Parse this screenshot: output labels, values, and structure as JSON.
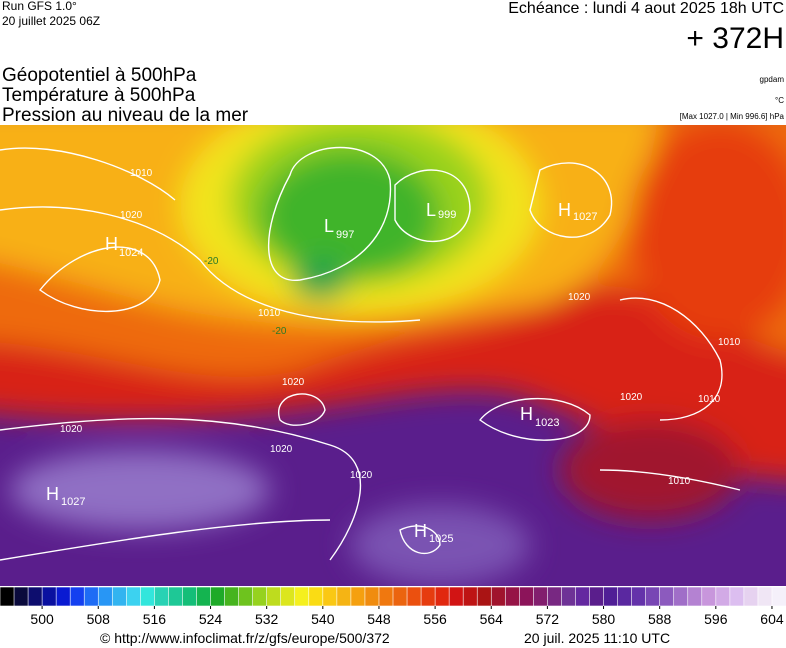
{
  "header": {
    "run": "Run GFS 1.0°",
    "date": "20 juillet 2025 06Z",
    "echeance": "Echéance : lundi 4 aout 2025 18h UTC",
    "lead": "+ 372H",
    "titles": [
      "Géopotentiel à 500hPa",
      "Température à 500hPa",
      "Pression au niveau de la mer"
    ],
    "units": [
      "gpdam",
      "°C"
    ],
    "pressure_range": "[Max 1027.0 | Min 996.6] hPa"
  },
  "map": {
    "centers": [
      {
        "type": "H",
        "value": "1024"
      },
      {
        "type": "L",
        "value": "997"
      },
      {
        "type": "L",
        "value": "999"
      },
      {
        "type": "H",
        "value": "1027"
      },
      {
        "type": "H",
        "value": "1023"
      },
      {
        "type": "H",
        "value": "1027"
      },
      {
        "type": "H",
        "value": "1025"
      }
    ],
    "isobar_labels": [
      "1010",
      "1020",
      "1010",
      "1020",
      "1020",
      "1020",
      "1020",
      "1020",
      "1010",
      "1020",
      "1010",
      "1010"
    ],
    "temperature_labels": [
      "-20",
      "-20"
    ]
  },
  "colorbar": {
    "range": [
      494,
      606
    ],
    "ticks": [
      500,
      508,
      516,
      524,
      532,
      540,
      548,
      556,
      564,
      572,
      580,
      588,
      596,
      604
    ],
    "colors": [
      "#000000",
      "#0a0a3c",
      "#0d0d6e",
      "#0a10a0",
      "#0a1ad2",
      "#1440f0",
      "#1e6cf5",
      "#2896f5",
      "#32b4f0",
      "#3cd2f0",
      "#32e6dc",
      "#28d2b4",
      "#1ec896",
      "#14be78",
      "#14b450",
      "#1eaa28",
      "#46b41e",
      "#6ec31e",
      "#96d21e",
      "#bedc1e",
      "#dce61e",
      "#f5f01e",
      "#fadc14",
      "#fac814",
      "#f5b414",
      "#f5a00f",
      "#f08c0f",
      "#f0780f",
      "#eb640f",
      "#eb500f",
      "#e63c0f",
      "#e1280f",
      "#d21414",
      "#be1414",
      "#aa1414",
      "#a0142d",
      "#961446",
      "#8c145a",
      "#821e6e",
      "#782882",
      "#6e3296",
      "#6428a0",
      "#5a1e8c",
      "#501e96",
      "#5a28a0",
      "#6432aa",
      "#7846b4",
      "#8c5abe",
      "#a06ec8",
      "#b482d2",
      "#c896dc",
      "#d2aae6",
      "#dcbef0",
      "#e6d2f0",
      "#f0e6f5",
      "#f5f0fa"
    ]
  },
  "footer": {
    "url": "© http://www.infoclimat.fr/z/gfs/europe/500/372",
    "generated": "20 juil. 2025 11:10 UTC"
  }
}
